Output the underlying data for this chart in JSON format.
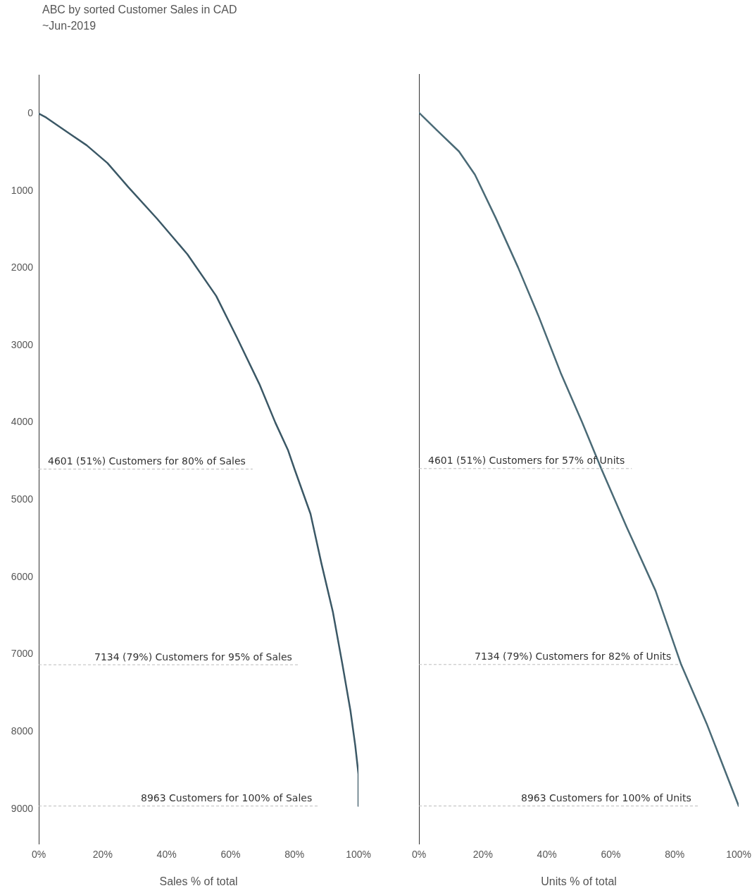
{
  "chart_data": [
    {
      "type": "line",
      "title": "ABC by sorted Customer Sales in CAD",
      "subtitle": "~Jun-2019",
      "xlabel": "Sales % of total",
      "color": "#3b5866",
      "grid": false,
      "legend": false,
      "marker": "none",
      "line_style": "solid",
      "x": [
        0,
        2.3,
        10,
        15,
        21.5,
        28,
        37,
        46.5,
        55.5,
        62,
        69,
        74,
        78,
        80,
        85,
        88.4,
        92,
        95,
        97.5,
        99,
        100,
        100
      ],
      "values": [
        0,
        50,
        270,
        410,
        640,
        950,
        1360,
        1820,
        2360,
        2900,
        3500,
        4000,
        4360,
        4601,
        5180,
        5820,
        6450,
        7134,
        7730,
        8180,
        8550,
        8963
      ],
      "xlim": [
        0,
        100
      ],
      "xticks": [
        {
          "value": 0,
          "label": "0%"
        },
        {
          "value": 20,
          "label": "20%"
        },
        {
          "value": 40,
          "label": "40%"
        },
        {
          "value": 60,
          "label": "60%"
        },
        {
          "value": 80,
          "label": "80%"
        },
        {
          "value": 100,
          "label": "100%"
        }
      ],
      "ylim": [
        9450,
        -500
      ],
      "yticks": [
        0,
        1000,
        2000,
        3000,
        4000,
        5000,
        6000,
        7000,
        8000,
        9000
      ],
      "ref_lines": [
        {
          "axis": "y",
          "value": 4601,
          "label": "4601 (51%) Customers for 80% of Sales",
          "color": "#bbbbbb",
          "line_style": "dashed"
        },
        {
          "axis": "y",
          "value": 7134,
          "label": "7134 (79%) Customers for 95% of Sales",
          "color": "#bbbbbb",
          "line_style": "dashed"
        },
        {
          "axis": "y",
          "value": 8963,
          "label": "8963 Customers for 100% of Sales",
          "color": "#bbbbbb",
          "line_style": "dashed"
        }
      ]
    },
    {
      "type": "line",
      "xlabel": "Units % of total",
      "color": "#4a6a76",
      "grid": false,
      "legend": false,
      "marker": "none",
      "line_style": "solid",
      "tick_labels": "x",
      "x": [
        0,
        5.7,
        12.5,
        17.5,
        24,
        31,
        37.5,
        44.3,
        51,
        57,
        65,
        74,
        82,
        90,
        100
      ],
      "values": [
        0,
        230,
        500,
        800,
        1360,
        2000,
        2640,
        3360,
        4000,
        4601,
        5360,
        6180,
        7134,
        7900,
        8963
      ],
      "xlim": [
        0,
        100
      ],
      "xticks": [
        {
          "value": 0,
          "label": "0%"
        },
        {
          "value": 20,
          "label": "20%"
        },
        {
          "value": 40,
          "label": "40%"
        },
        {
          "value": 60,
          "label": "60%"
        },
        {
          "value": 80,
          "label": "80%"
        },
        {
          "value": 100,
          "label": "100%"
        }
      ],
      "ylim": [
        9450,
        -500
      ],
      "yticks": [
        0,
        1000,
        2000,
        3000,
        4000,
        5000,
        6000,
        7000,
        8000,
        9000
      ],
      "ref_lines": [
        {
          "axis": "y",
          "value": 4601,
          "label": "4601 (51%) Customers for 57% of Units",
          "color": "#bbbbbb",
          "line_style": "dashed"
        },
        {
          "axis": "y",
          "value": 7134,
          "label": "7134 (79%) Customers for 82% of Units",
          "color": "#bbbbbb",
          "line_style": "dashed"
        },
        {
          "axis": "y",
          "value": 8963,
          "label": "8963 Customers for 100% of Units",
          "color": "#bbbbbb",
          "line_style": "dashed"
        }
      ]
    }
  ]
}
